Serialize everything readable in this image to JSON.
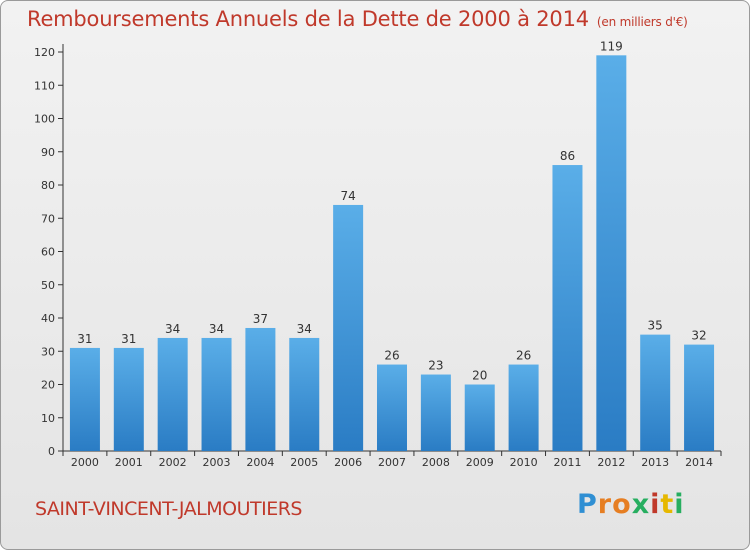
{
  "chart_data": {
    "type": "bar",
    "title": "Remboursements Annuels de la Dette de 2000 à 2014",
    "subtitle": "(en milliers d'€)",
    "categories": [
      "2000",
      "2001",
      "2002",
      "2003",
      "2004",
      "2005",
      "2006",
      "2007",
      "2008",
      "2009",
      "2010",
      "2011",
      "2012",
      "2013",
      "2014"
    ],
    "values": [
      31,
      31,
      34,
      34,
      37,
      34,
      74,
      26,
      23,
      20,
      26,
      86,
      119,
      35,
      32
    ],
    "xlabel": "",
    "ylabel": "",
    "ylim": [
      0,
      120
    ],
    "yticks": [
      0,
      10,
      20,
      30,
      40,
      50,
      60,
      70,
      80,
      90,
      100,
      110,
      120
    ],
    "grid": false,
    "bar_color": "#3a8fd6"
  },
  "footer": {
    "commune": "SAINT-VINCENT-JALMOUTIERS",
    "logo_letters": [
      "P",
      "r",
      "o",
      "x",
      "i",
      "t",
      "i"
    ],
    "logo_colors": [
      "#2f8fd3",
      "#e67e22",
      "#e67e22",
      "#27ae60",
      "#c0392b",
      "#e6b800",
      "#27ae60"
    ]
  }
}
